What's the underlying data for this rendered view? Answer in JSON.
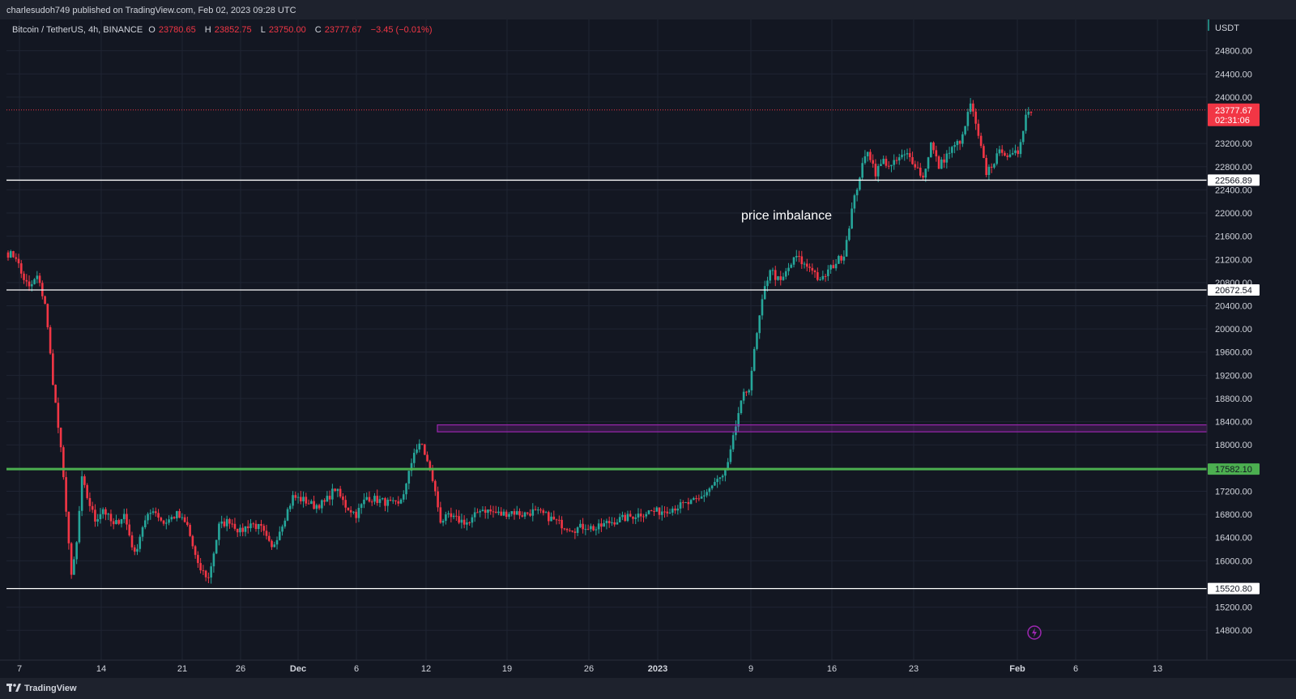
{
  "header": {
    "published": "charlesudoh749 published on TradingView.com, Feb 02, 2023 09:28 UTC"
  },
  "legend": {
    "symbol": "Bitcoin / TetherUS, 4h, BINANCE",
    "o_label": "O",
    "o_value": "23780.65",
    "h_label": "H",
    "h_value": "23852.75",
    "l_label": "L",
    "l_value": "23750.00",
    "c_label": "C",
    "c_value": "23777.67",
    "change": "−3.45 (−0.01%)"
  },
  "footer": {
    "brand": "TradingView"
  },
  "colors": {
    "background": "#131722",
    "up": "#26a69a",
    "down": "#f23645",
    "support": "#4caf50",
    "zone": "#9c27b0",
    "level": "#ffffff",
    "grid": "#1f2433"
  },
  "chart_data": {
    "type": "candlestick",
    "title": "Bitcoin / TetherUS, 4h, BINANCE",
    "currency": "USDT",
    "y_range": [
      14600,
      24900
    ],
    "x_ticks": [
      "7",
      "14",
      "21",
      "26",
      "Dec",
      "6",
      "12",
      "19",
      "26",
      "2023",
      "9",
      "16",
      "23",
      "Feb",
      "6",
      "13"
    ],
    "y_ticks": [
      "24800.00",
      "24400.00",
      "24000.00",
      "23200.00",
      "22800.00",
      "22400.00",
      "22000.00",
      "21600.00",
      "21200.00",
      "20800.00",
      "20400.00",
      "20000.00",
      "19600.00",
      "19200.00",
      "18800.00",
      "18400.00",
      "18000.00",
      "17200.00",
      "16800.00",
      "16400.00",
      "16000.00",
      "15200.00",
      "14800.00"
    ],
    "last_price": {
      "value": 23777.67,
      "label": "23777.67",
      "countdown": "02:31:06"
    },
    "levels": [
      {
        "value": 22566.89,
        "label": "22566.89",
        "style": "white"
      },
      {
        "value": 20672.54,
        "label": "20672.54",
        "style": "white"
      },
      {
        "value": 17582.1,
        "label": "17582.10",
        "style": "green"
      },
      {
        "value": 15520.8,
        "label": "15520.80",
        "style": "white"
      }
    ],
    "zone": {
      "from": 18225,
      "to": 18345
    },
    "annotation": "price imbalance",
    "path": [
      [
        0,
        21300
      ],
      [
        3,
        21250
      ],
      [
        5,
        20950
      ],
      [
        8,
        20700
      ],
      [
        11,
        20900
      ],
      [
        14,
        20450
      ],
      [
        17,
        19100
      ],
      [
        20,
        17900
      ],
      [
        22,
        16900
      ],
      [
        24,
        15700
      ],
      [
        26,
        16300
      ],
      [
        28,
        17400
      ],
      [
        30,
        17100
      ],
      [
        33,
        16700
      ],
      [
        36,
        16900
      ],
      [
        40,
        16600
      ],
      [
        44,
        16800
      ],
      [
        48,
        16100
      ],
      [
        51,
        16600
      ],
      [
        55,
        16900
      ],
      [
        59,
        16650
      ],
      [
        64,
        16800
      ],
      [
        68,
        16600
      ],
      [
        72,
        15900
      ],
      [
        76,
        15700
      ],
      [
        80,
        16600
      ],
      [
        84,
        16700
      ],
      [
        88,
        16500
      ],
      [
        92,
        16650
      ],
      [
        96,
        16550
      ],
      [
        100,
        16200
      ],
      [
        104,
        16650
      ],
      [
        108,
        17100
      ],
      [
        112,
        17050
      ],
      [
        116,
        16950
      ],
      [
        120,
        17000
      ],
      [
        124,
        17250
      ],
      [
        128,
        16950
      ],
      [
        132,
        16800
      ],
      [
        136,
        17100
      ],
      [
        140,
        17050
      ],
      [
        144,
        17000
      ],
      [
        148,
        16950
      ],
      [
        151,
        17300
      ],
      [
        154,
        17900
      ],
      [
        157,
        18000
      ],
      [
        159,
        17700
      ],
      [
        161,
        17400
      ],
      [
        164,
        16700
      ],
      [
        167,
        16750
      ],
      [
        171,
        16700
      ],
      [
        175,
        16650
      ],
      [
        179,
        16900
      ],
      [
        183,
        16850
      ],
      [
        187,
        16800
      ],
      [
        191,
        16850
      ],
      [
        195,
        16800
      ],
      [
        199,
        16850
      ],
      [
        203,
        16800
      ],
      [
        207,
        16700
      ],
      [
        211,
        16600
      ],
      [
        215,
        16550
      ],
      [
        219,
        16600
      ],
      [
        223,
        16550
      ],
      [
        227,
        16650
      ],
      [
        231,
        16700
      ],
      [
        235,
        16750
      ],
      [
        239,
        16800
      ],
      [
        243,
        16850
      ],
      [
        247,
        16850
      ],
      [
        251,
        16900
      ],
      [
        255,
        16950
      ],
      [
        259,
        17000
      ],
      [
        262,
        17050
      ],
      [
        265,
        17200
      ],
      [
        268,
        17350
      ],
      [
        271,
        17450
      ],
      [
        273,
        17650
      ],
      [
        275,
        18100
      ],
      [
        277,
        18550
      ],
      [
        279,
        18850
      ],
      [
        281,
        19000
      ],
      [
        283,
        19600
      ],
      [
        285,
        20200
      ],
      [
        287,
        20700
      ],
      [
        289,
        21050
      ],
      [
        291,
        20900
      ],
      [
        293,
        20800
      ],
      [
        296,
        21050
      ],
      [
        299,
        21250
      ],
      [
        302,
        21100
      ],
      [
        305,
        21050
      ],
      [
        308,
        20800
      ],
      [
        311,
        21000
      ],
      [
        314,
        21150
      ],
      [
        317,
        21300
      ],
      [
        320,
        22050
      ],
      [
        323,
        22650
      ],
      [
        326,
        23100
      ],
      [
        329,
        22700
      ],
      [
        332,
        22900
      ],
      [
        335,
        22800
      ],
      [
        338,
        22950
      ],
      [
        341,
        23000
      ],
      [
        344,
        22850
      ],
      [
        347,
        22600
      ],
      [
        350,
        23200
      ],
      [
        353,
        22800
      ],
      [
        356,
        23000
      ],
      [
        359,
        23150
      ],
      [
        362,
        23300
      ],
      [
        365,
        23900
      ],
      [
        368,
        23300
      ],
      [
        371,
        22700
      ],
      [
        374,
        22900
      ],
      [
        377,
        23100
      ],
      [
        380,
        22950
      ],
      [
        383,
        23050
      ],
      [
        386,
        23700
      ],
      [
        388,
        23780
      ]
    ]
  }
}
